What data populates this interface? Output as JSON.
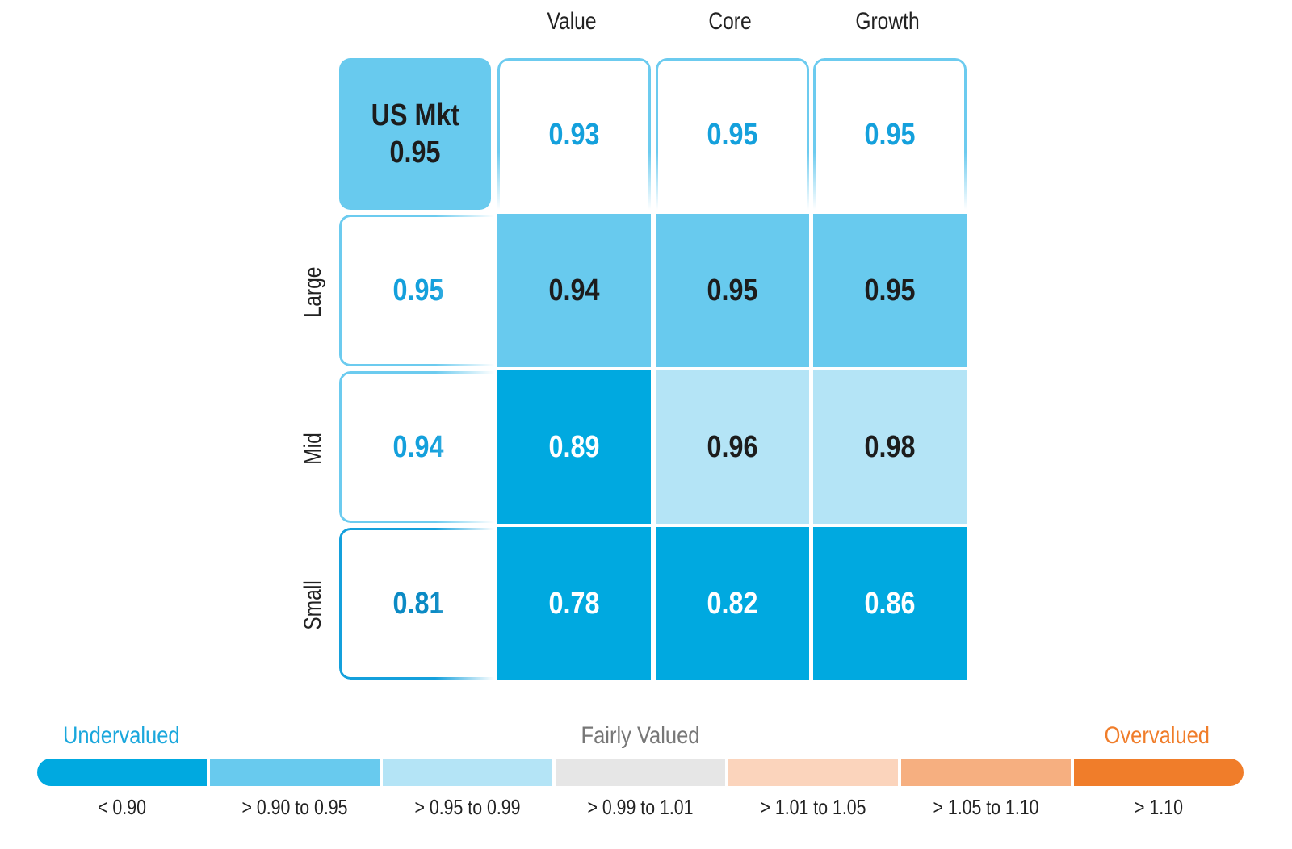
{
  "chart_data": {
    "type": "heatmap",
    "columns": [
      "Value",
      "Core",
      "Growth"
    ],
    "rows": [
      "Large",
      "Mid",
      "Small"
    ],
    "market": {
      "label": "US Mkt",
      "value": "0.95"
    },
    "column_totals": [
      "0.93",
      "0.95",
      "0.95"
    ],
    "row_totals": [
      "0.95",
      "0.94",
      "0.81"
    ],
    "values": [
      [
        "0.94",
        "0.95",
        "0.95"
      ],
      [
        "0.89",
        "0.96",
        "0.98"
      ],
      [
        "0.78",
        "0.82",
        "0.86"
      ]
    ],
    "legend": {
      "left_label": "Undervalued",
      "center_label": "Fairly Valued",
      "right_label": "Overvalued",
      "bins": [
        {
          "range": "< 0.90",
          "color": "#00a9e0"
        },
        {
          "range": "> 0.90 to 0.95",
          "color": "#68caee"
        },
        {
          "range": "> 0.95 to 0.99",
          "color": "#b4e4f6"
        },
        {
          "range": "> 0.99 to 1.01",
          "color": "#e6e6e6"
        },
        {
          "range": "> 1.01 to 1.05",
          "color": "#fbd4bc"
        },
        {
          "range": "> 1.05 to 1.10",
          "color": "#f6af80"
        },
        {
          "range": "> 1.10",
          "color": "#f07d2a"
        }
      ]
    },
    "colors": {
      "undervalued_text": "#1aa7dc",
      "overvalued_text": "#f07d2a",
      "neutral_text": "#777777",
      "outline": "#6ccbef",
      "total_text_blue": "#14a0dc",
      "total_text_dark_blue": "#0b8ac4",
      "dark_text": "#1c1c1c"
    }
  }
}
